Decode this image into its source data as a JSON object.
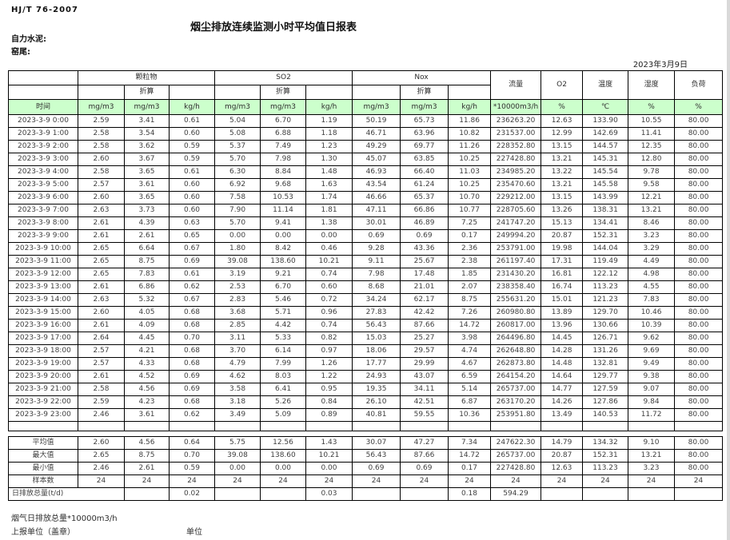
{
  "page": {
    "doc_code": "HJ/T 76-2007",
    "title": "烟尘排放连续监测小时平均值日报表",
    "company": "自力水泥:",
    "location": "窑尾:",
    "date": "2023年3月9日",
    "footer_note": "烟气日排放总量*10000m3/h",
    "footer_report_unit": "上报单位（盖章）",
    "footer_unit": "单位"
  },
  "colors": {
    "unit_row_bg": "#ccffcc",
    "border": "#000000",
    "text": "#3f3f3f"
  },
  "table": {
    "time_label": "时间",
    "converted_label": "折算",
    "groups": {
      "pm": "颗粒物",
      "so2": "SO2",
      "nox": "Nox",
      "flow": "流量",
      "o2": "O2",
      "temp": "温度",
      "humidity": "湿度",
      "load": "负荷"
    },
    "units": {
      "mg": "mg/m3",
      "kgh": "kg/h",
      "flow": "*10000m3/h",
      "pct": "%",
      "celsius": "℃"
    },
    "rows": [
      [
        "2023-3-9 0:00",
        "2.59",
        "3.41",
        "0.61",
        "5.04",
        "6.70",
        "1.19",
        "50.19",
        "65.73",
        "11.86",
        "236263.20",
        "12.63",
        "133.90",
        "10.55",
        "80.00"
      ],
      [
        "2023-3-9 1:00",
        "2.58",
        "3.54",
        "0.60",
        "5.08",
        "6.88",
        "1.18",
        "46.71",
        "63.96",
        "10.82",
        "231537.00",
        "12.99",
        "142.69",
        "11.41",
        "80.00"
      ],
      [
        "2023-3-9 2:00",
        "2.58",
        "3.62",
        "0.59",
        "5.37",
        "7.49",
        "1.23",
        "49.29",
        "69.77",
        "11.26",
        "228352.80",
        "13.15",
        "144.57",
        "12.35",
        "80.00"
      ],
      [
        "2023-3-9 3:00",
        "2.60",
        "3.67",
        "0.59",
        "5.70",
        "7.98",
        "1.30",
        "45.07",
        "63.85",
        "10.25",
        "227428.80",
        "13.21",
        "145.31",
        "12.80",
        "80.00"
      ],
      [
        "2023-3-9 4:00",
        "2.58",
        "3.65",
        "0.61",
        "6.30",
        "8.84",
        "1.48",
        "46.93",
        "66.40",
        "11.03",
        "234985.20",
        "13.22",
        "145.54",
        "9.78",
        "80.00"
      ],
      [
        "2023-3-9 5:00",
        "2.57",
        "3.61",
        "0.60",
        "6.92",
        "9.68",
        "1.63",
        "43.54",
        "61.24",
        "10.25",
        "235470.60",
        "13.21",
        "145.58",
        "9.58",
        "80.00"
      ],
      [
        "2023-3-9 6:00",
        "2.60",
        "3.65",
        "0.60",
        "7.58",
        "10.53",
        "1.74",
        "46.66",
        "65.37",
        "10.70",
        "229212.00",
        "13.15",
        "143.99",
        "12.21",
        "80.00"
      ],
      [
        "2023-3-9 7:00",
        "2.63",
        "3.73",
        "0.60",
        "7.90",
        "11.14",
        "1.81",
        "47.11",
        "66.86",
        "10.77",
        "228705.60",
        "13.26",
        "138.31",
        "13.21",
        "80.00"
      ],
      [
        "2023-3-9 8:00",
        "2.61",
        "4.39",
        "0.63",
        "5.70",
        "9.41",
        "1.38",
        "30.01",
        "46.89",
        "7.25",
        "241747.20",
        "15.13",
        "134.41",
        "8.46",
        "80.00"
      ],
      [
        "2023-3-9 9:00",
        "2.61",
        "2.61",
        "0.65",
        "0.00",
        "0.00",
        "0.00",
        "0.69",
        "0.69",
        "0.17",
        "249994.20",
        "20.87",
        "152.31",
        "3.23",
        "80.00"
      ],
      [
        "2023-3-9 10:00",
        "2.65",
        "6.64",
        "0.67",
        "1.80",
        "8.42",
        "0.46",
        "9.28",
        "43.36",
        "2.36",
        "253791.00",
        "19.98",
        "144.04",
        "3.29",
        "80.00"
      ],
      [
        "2023-3-9 11:00",
        "2.65",
        "8.75",
        "0.69",
        "39.08",
        "138.60",
        "10.21",
        "9.11",
        "25.67",
        "2.38",
        "261197.40",
        "17.31",
        "119.49",
        "4.49",
        "80.00"
      ],
      [
        "2023-3-9 12:00",
        "2.65",
        "7.83",
        "0.61",
        "3.19",
        "9.21",
        "0.74",
        "7.98",
        "17.48",
        "1.85",
        "231430.20",
        "16.81",
        "122.12",
        "4.98",
        "80.00"
      ],
      [
        "2023-3-9 13:00",
        "2.61",
        "6.86",
        "0.62",
        "2.53",
        "6.70",
        "0.60",
        "8.68",
        "21.01",
        "2.07",
        "238358.40",
        "16.74",
        "113.23",
        "4.55",
        "80.00"
      ],
      [
        "2023-3-9 14:00",
        "2.63",
        "5.32",
        "0.67",
        "2.83",
        "5.46",
        "0.72",
        "34.24",
        "62.17",
        "8.75",
        "255631.20",
        "15.01",
        "121.23",
        "7.83",
        "80.00"
      ],
      [
        "2023-3-9 15:00",
        "2.60",
        "4.05",
        "0.68",
        "3.68",
        "5.71",
        "0.96",
        "27.83",
        "42.42",
        "7.26",
        "260980.80",
        "13.89",
        "129.70",
        "10.46",
        "80.00"
      ],
      [
        "2023-3-9 16:00",
        "2.61",
        "4.09",
        "0.68",
        "2.85",
        "4.42",
        "0.74",
        "56.43",
        "87.66",
        "14.72",
        "260817.00",
        "13.96",
        "130.66",
        "10.39",
        "80.00"
      ],
      [
        "2023-3-9 17:00",
        "2.64",
        "4.45",
        "0.70",
        "3.11",
        "5.33",
        "0.82",
        "15.03",
        "25.27",
        "3.98",
        "264496.80",
        "14.45",
        "126.71",
        "9.62",
        "80.00"
      ],
      [
        "2023-3-9 18:00",
        "2.57",
        "4.21",
        "0.68",
        "3.70",
        "6.14",
        "0.97",
        "18.06",
        "29.57",
        "4.74",
        "262648.80",
        "14.28",
        "131.26",
        "9.69",
        "80.00"
      ],
      [
        "2023-3-9 19:00",
        "2.57",
        "4.33",
        "0.68",
        "4.79",
        "7.99",
        "1.26",
        "17.77",
        "29.99",
        "4.67",
        "262873.80",
        "14.48",
        "132.81",
        "9.49",
        "80.00"
      ],
      [
        "2023-3-9 20:00",
        "2.61",
        "4.52",
        "0.69",
        "4.62",
        "8.03",
        "1.22",
        "24.93",
        "43.07",
        "6.59",
        "264154.20",
        "14.64",
        "129.77",
        "9.38",
        "80.00"
      ],
      [
        "2023-3-9 21:00",
        "2.58",
        "4.56",
        "0.69",
        "3.58",
        "6.41",
        "0.95",
        "19.35",
        "34.11",
        "5.14",
        "265737.00",
        "14.77",
        "127.59",
        "9.07",
        "80.00"
      ],
      [
        "2023-3-9 22:00",
        "2.59",
        "4.23",
        "0.68",
        "3.18",
        "5.26",
        "0.84",
        "26.10",
        "42.51",
        "6.87",
        "263170.20",
        "14.26",
        "127.86",
        "9.84",
        "80.00"
      ],
      [
        "2023-3-9 23:00",
        "2.46",
        "3.61",
        "0.62",
        "3.49",
        "5.09",
        "0.89",
        "40.81",
        "59.55",
        "10.36",
        "253951.80",
        "13.49",
        "140.53",
        "11.72",
        "80.00"
      ]
    ],
    "summary_rows": [
      {
        "label": "平均值",
        "values": [
          "2.60",
          "4.56",
          "0.64",
          "5.75",
          "12.56",
          "1.43",
          "30.07",
          "47.27",
          "7.34",
          "247622.30",
          "14.79",
          "134.32",
          "9.10",
          "80.00"
        ]
      },
      {
        "label": "最大值",
        "values": [
          "2.65",
          "8.75",
          "0.70",
          "39.08",
          "138.60",
          "10.21",
          "56.43",
          "87.66",
          "14.72",
          "265737.00",
          "20.87",
          "152.31",
          "13.21",
          "80.00"
        ]
      },
      {
        "label": "最小值",
        "values": [
          "2.46",
          "2.61",
          "0.59",
          "0.00",
          "0.00",
          "0.00",
          "0.69",
          "0.69",
          "0.17",
          "227428.80",
          "12.63",
          "113.23",
          "3.23",
          "80.00"
        ]
      },
      {
        "label": "样本数",
        "values": [
          "24",
          "24",
          "24",
          "24",
          "24",
          "24",
          "24",
          "24",
          "24",
          "24",
          "24",
          "24",
          "24",
          "24"
        ]
      }
    ],
    "daily_total": {
      "label": "日排放总量(t/d)",
      "values": [
        "",
        "0.02",
        "",
        "",
        "0.03",
        "",
        "",
        "0.18",
        "594.29",
        "",
        "",
        "",
        "",
        ""
      ]
    }
  }
}
